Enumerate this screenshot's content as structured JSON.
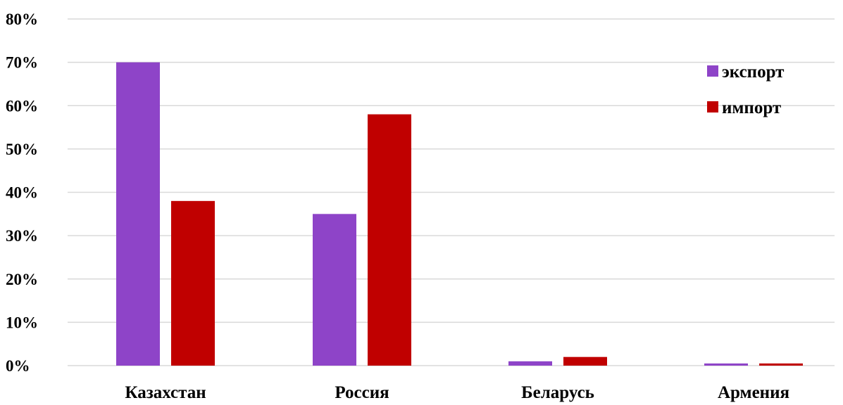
{
  "chart_data": {
    "type": "bar",
    "categories": [
      "Казахстан",
      "Россия",
      "Беларусь",
      "Армения"
    ],
    "series": [
      {
        "name": "экспорт",
        "values": [
          70,
          35,
          1,
          0.5
        ],
        "color": "#8e44c8"
      },
      {
        "name": "импорт",
        "values": [
          38,
          58,
          2,
          0.5
        ],
        "color": "#c00000"
      }
    ],
    "ylim": [
      0,
      80
    ],
    "yticks": [
      "0%",
      "10%",
      "20%",
      "30%",
      "40%",
      "50%",
      "60%",
      "70%",
      "80%"
    ],
    "ytick_values": [
      0,
      10,
      20,
      30,
      40,
      50,
      60,
      70,
      80
    ],
    "grid": true,
    "legend_position": "top-right"
  }
}
